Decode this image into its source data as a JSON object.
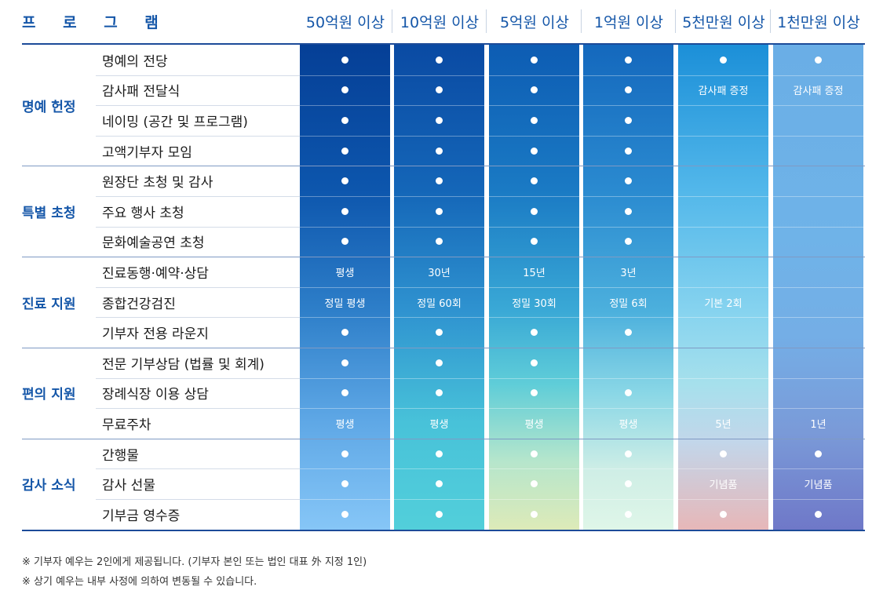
{
  "header": {
    "program_label": "프 로 그 램",
    "tiers": [
      "50억원 이상",
      "10억원 이상",
      "5억원 이상",
      "1억원 이상",
      "5천만원 이상",
      "1천만원 이상"
    ]
  },
  "colors": {
    "accent": "#1456a8",
    "rule": "#1c4b99"
  },
  "groups": [
    {
      "label": "명예 헌정",
      "rows": [
        {
          "item": "명예의 전당",
          "cells": [
            "dot",
            "dot",
            "dot",
            "dot",
            "dot",
            "dot"
          ]
        },
        {
          "item": "감사패 전달식",
          "cells": [
            "dot",
            "dot",
            "dot",
            "dot",
            "감사패 증정",
            "감사패 증정"
          ]
        },
        {
          "item": "네이밍 (공간 및 프로그램)",
          "cells": [
            "dot",
            "dot",
            "dot",
            "dot",
            "",
            ""
          ]
        },
        {
          "item": "고액기부자 모임",
          "cells": [
            "dot",
            "dot",
            "dot",
            "dot",
            "",
            ""
          ]
        }
      ]
    },
    {
      "label": "특별 초청",
      "rows": [
        {
          "item": "원장단 초청 및 감사",
          "cells": [
            "dot",
            "dot",
            "dot",
            "dot",
            "",
            ""
          ]
        },
        {
          "item": "주요 행사 초청",
          "cells": [
            "dot",
            "dot",
            "dot",
            "dot",
            "",
            ""
          ]
        },
        {
          "item": "문화예술공연 초청",
          "cells": [
            "dot",
            "dot",
            "dot",
            "dot",
            "",
            ""
          ]
        }
      ]
    },
    {
      "label": "진료 지원",
      "rows": [
        {
          "item": "진료동행·예약·상담",
          "cells": [
            "평생",
            "30년",
            "15년",
            "3년",
            "",
            ""
          ]
        },
        {
          "item": "종합건강검진",
          "cells": [
            "정밀 평생",
            "정밀 60회",
            "정밀 30회",
            "정밀 6회",
            "기본 2회",
            ""
          ]
        },
        {
          "item": "기부자 전용 라운지",
          "cells": [
            "dot",
            "dot",
            "dot",
            "dot",
            "",
            ""
          ]
        }
      ]
    },
    {
      "label": "편의 지원",
      "rows": [
        {
          "item": "전문 기부상담 (법률 및 회계)",
          "cells": [
            "dot",
            "dot",
            "dot",
            "",
            "",
            ""
          ]
        },
        {
          "item": "장례식장 이용 상담",
          "cells": [
            "dot",
            "dot",
            "dot",
            "dot",
            "",
            ""
          ]
        },
        {
          "item": "무료주차",
          "cells": [
            "평생",
            "평생",
            "평생",
            "평생",
            "5년",
            "1년"
          ]
        }
      ]
    },
    {
      "label": "감사 소식",
      "rows": [
        {
          "item": "간행물",
          "cells": [
            "dot",
            "dot",
            "dot",
            "dot",
            "dot",
            "dot"
          ]
        },
        {
          "item": "감사 선물",
          "cells": [
            "dot",
            "dot",
            "dot",
            "dot",
            "기념품",
            "기념품"
          ]
        },
        {
          "item": "기부금 영수증",
          "cells": [
            "dot",
            "dot",
            "dot",
            "dot",
            "dot",
            "dot"
          ]
        }
      ]
    }
  ],
  "footnotes": [
    "※ 기부자 예우는 2인에게 제공됩니다. (기부자 본인 또는 법인 대표 外 지정 1인)",
    "※ 상기 예우는 내부 사정에 의하여 변동될 수 있습니다."
  ]
}
